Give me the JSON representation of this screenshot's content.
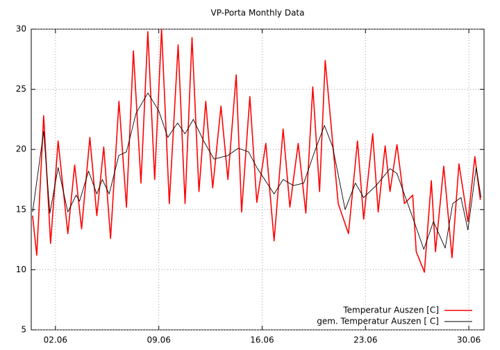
{
  "chart_data": {
    "type": "line",
    "title": "VP-Porta Monthly Data",
    "xlim": [
      0.36,
      31.03
    ],
    "xticks": [
      {
        "value": 2,
        "label": "02.06"
      },
      {
        "value": 9,
        "label": "09.06"
      },
      {
        "value": 16,
        "label": "16.06"
      },
      {
        "value": 23,
        "label": "23.06"
      },
      {
        "value": 30,
        "label": "30.06"
      }
    ],
    "ylim": [
      5,
      30
    ],
    "yticks": [
      5,
      10,
      15,
      20,
      25,
      30
    ],
    "grid": true,
    "legend": "bottom-right",
    "series": [
      {
        "name": "Temperatur Auszen [C]",
        "color": "#ff0000",
        "x": [
          0.45,
          0.73,
          1.2,
          1.67,
          2.18,
          2.84,
          3.3,
          3.77,
          4.33,
          4.8,
          5.27,
          5.73,
          6.3,
          6.81,
          7.28,
          7.79,
          8.26,
          8.72,
          9.19,
          9.71,
          10.31,
          10.78,
          11.25,
          11.72,
          12.18,
          12.65,
          13.21,
          13.68,
          14.24,
          14.61,
          15.17,
          15.64,
          16.25,
          16.81,
          17.42,
          17.88,
          18.44,
          18.96,
          19.43,
          19.89,
          20.27,
          21.15,
          21.85,
          22.46,
          22.88,
          23.49,
          23.86,
          24.33,
          24.66,
          25.13,
          25.64,
          26.2,
          26.44,
          26.99,
          27.46,
          27.74,
          28.3,
          28.86,
          29.33,
          29.94,
          30.41,
          30.78
        ],
        "values": [
          14.5,
          11.2,
          22.8,
          12.2,
          20.7,
          13,
          18.7,
          13.4,
          21,
          14.5,
          20.2,
          12.6,
          24,
          15.2,
          28.2,
          17.2,
          29.8,
          17.5,
          30,
          15.5,
          28.7,
          15.5,
          29.3,
          16.5,
          24,
          16.8,
          23.6,
          17.5,
          26.2,
          14.8,
          24.4,
          15.6,
          20.5,
          12.4,
          21.7,
          15.2,
          20.5,
          14.7,
          25.2,
          16.5,
          27.4,
          15.5,
          13,
          20.7,
          14.2,
          21.3,
          14.8,
          20.3,
          16.5,
          20.4,
          15.5,
          16.2,
          11.5,
          9.8,
          17.4,
          11.5,
          18.6,
          11,
          18.8,
          14,
          19.4,
          15.8
        ]
      },
      {
        "name": "gem. Temperatur Auszen [ C]",
        "color": "#000000",
        "x": [
          0.45,
          1.2,
          1.62,
          2.18,
          2.84,
          3.4,
          3.63,
          4.24,
          4.8,
          5.17,
          5.64,
          6.29,
          6.81,
          7.46,
          8.26,
          9.0,
          9.61,
          10.27,
          10.78,
          11.34,
          12.04,
          12.74,
          13.68,
          14.38,
          15.08,
          15.64,
          16.81,
          17.42,
          18.12,
          18.82,
          19.52,
          20.22,
          20.78,
          21.62,
          22.32,
          22.88,
          23.72,
          24.66,
          25.13,
          26.15,
          26.95,
          27.6,
          28.4,
          28.91,
          29.47,
          29.94,
          30.5,
          30.83
        ],
        "values": [
          14.8,
          21.5,
          14.7,
          18.5,
          14.8,
          16.2,
          15.7,
          18.2,
          16.3,
          17.5,
          16.3,
          19.5,
          19.8,
          23,
          24.7,
          23.2,
          21,
          22.2,
          21.3,
          22.5,
          20.7,
          19.2,
          19.5,
          20.1,
          19.8,
          18.5,
          16.3,
          17.5,
          17,
          17.2,
          19.7,
          22,
          20.2,
          15,
          17.2,
          16,
          17,
          18.4,
          18,
          14.5,
          11.7,
          14,
          11.8,
          15.5,
          16,
          13.3,
          18.5,
          16
        ]
      }
    ]
  }
}
